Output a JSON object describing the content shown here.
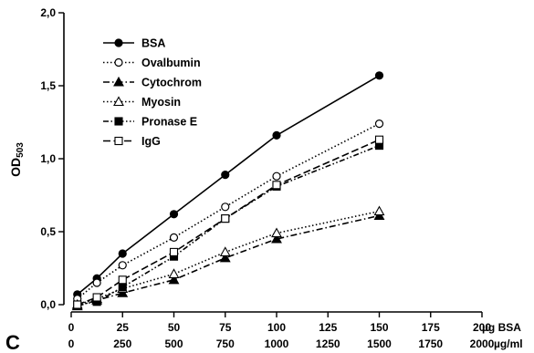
{
  "panel_label": "C",
  "chart_data": {
    "type": "line",
    "title": "",
    "xlabel": "µg BSA",
    "xlabel_secondary": "µg/ml",
    "ylabel_main": "OD",
    "ylabel_sub": "503",
    "xlim": [
      0,
      200
    ],
    "ylim": [
      0,
      2.0
    ],
    "x_ticks": [
      0,
      25,
      50,
      75,
      100,
      125,
      150,
      175,
      200
    ],
    "x_tick_labels": [
      "0",
      "25",
      "50",
      "75",
      "100",
      "125",
      "150",
      "175",
      "200"
    ],
    "x_tick_labels_secondary": [
      "0",
      "250",
      "500",
      "750",
      "1000",
      "1250",
      "1500",
      "1750",
      "2000"
    ],
    "y_ticks": [
      0,
      0.5,
      1.0,
      1.5,
      2.0
    ],
    "y_tick_labels": [
      "0,0",
      "0,5",
      "1,0",
      "1,5",
      "2,0"
    ],
    "grid": false,
    "legend_position": "top-left",
    "series": [
      {
        "name": "BSA",
        "marker": "circle-filled",
        "dash": "solid",
        "x": [
          3,
          12.5,
          25,
          50,
          75,
          100,
          150
        ],
        "y": [
          0.07,
          0.18,
          0.35,
          0.62,
          0.89,
          1.16,
          1.57
        ]
      },
      {
        "name": "Ovalbumin",
        "marker": "circle-open",
        "dash": "dotted",
        "x": [
          3,
          12.5,
          25,
          50,
          75,
          100,
          150
        ],
        "y": [
          0.04,
          0.15,
          0.27,
          0.46,
          0.67,
          0.88,
          1.24
        ]
      },
      {
        "name": "Cytochrom",
        "marker": "triangle-filled",
        "dash": "dashdot",
        "x": [
          3,
          12.5,
          25,
          50,
          75,
          100,
          150
        ],
        "y": [
          -0.01,
          0.03,
          0.08,
          0.17,
          0.32,
          0.45,
          0.61
        ]
      },
      {
        "name": "Myosin",
        "marker": "triangle-open",
        "dash": "dotted",
        "x": [
          3,
          12.5,
          25,
          50,
          75,
          100,
          150
        ],
        "y": [
          0.0,
          0.04,
          0.11,
          0.21,
          0.36,
          0.49,
          0.64
        ]
      },
      {
        "name": "Pronase E",
        "marker": "square-filled",
        "dash": "dashdotdot",
        "x": [
          3,
          12.5,
          25,
          50,
          75,
          100,
          150
        ],
        "y": [
          0.0,
          0.02,
          0.12,
          0.33,
          0.59,
          0.81,
          1.09
        ]
      },
      {
        "name": "IgG",
        "marker": "square-open",
        "dash": "longdash",
        "x": [
          3,
          12.5,
          25,
          50,
          75,
          100,
          150
        ],
        "y": [
          0.0,
          0.05,
          0.17,
          0.36,
          0.59,
          0.82,
          1.13
        ]
      }
    ]
  }
}
